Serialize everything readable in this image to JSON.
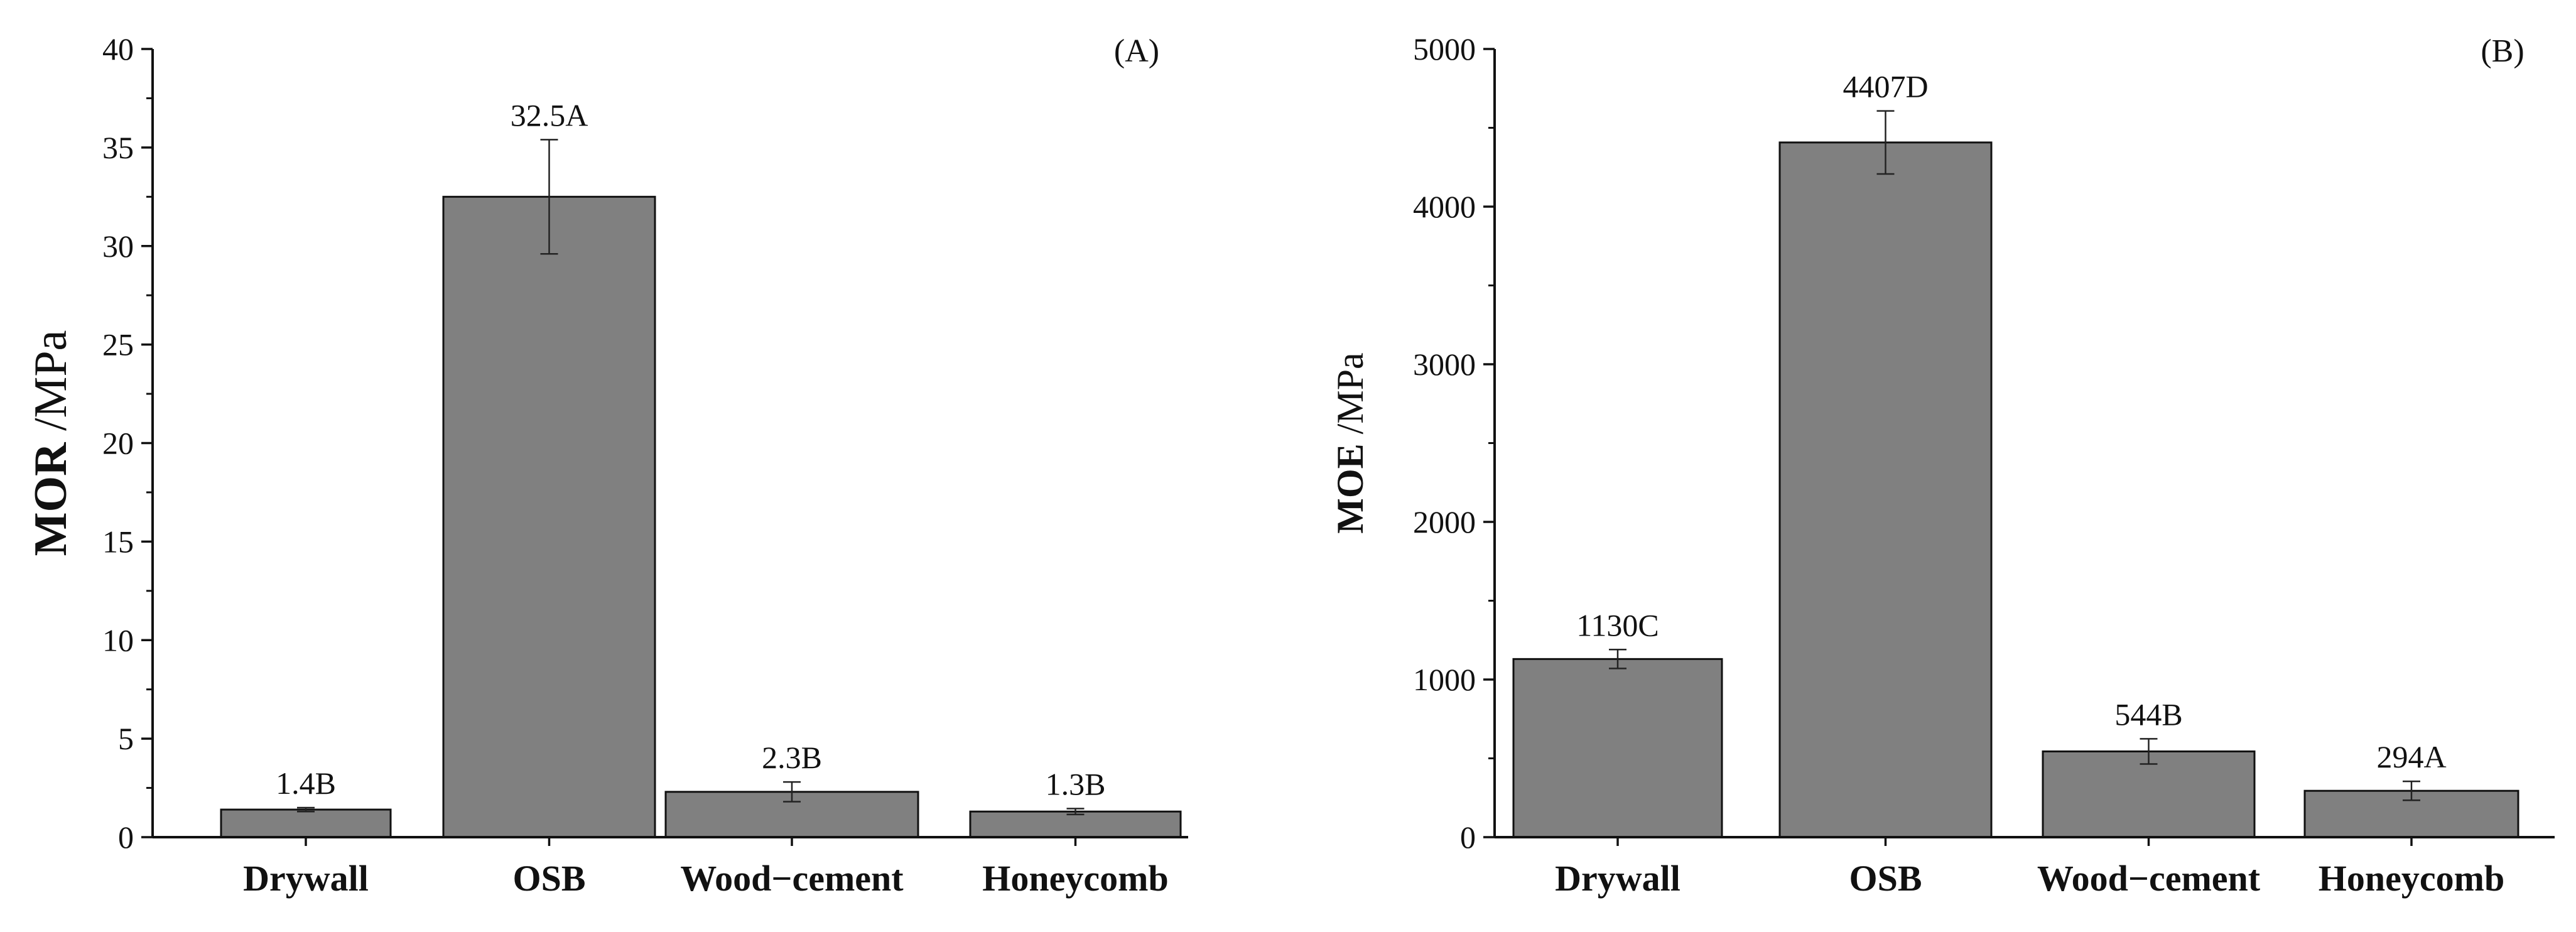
{
  "bar_color": "#808080",
  "chart_data": [
    {
      "type": "bar",
      "panel_label": "(A)",
      "ylabel_bold": "MOR",
      "ylabel_unit": " /MPa",
      "xlabel": "",
      "ylim": [
        0,
        40
      ],
      "yticks": [
        0,
        5,
        10,
        15,
        20,
        25,
        30,
        35,
        40
      ],
      "grid": false,
      "categories": [
        "Drywall",
        "OSB",
        "Wood−cement",
        "Honeycomb"
      ],
      "values": [
        1.4,
        32.5,
        2.3,
        1.3
      ],
      "errors": [
        0.1,
        2.9,
        0.5,
        0.15
      ],
      "data_labels": [
        "1.4B",
        "32.5A",
        "2.3B",
        "1.3B"
      ]
    },
    {
      "type": "bar",
      "panel_label": "(B)",
      "ylabel_bold": "MOE",
      "ylabel_unit": " /MPa",
      "xlabel": "",
      "ylim": [
        0,
        5000
      ],
      "yticks": [
        0,
        1000,
        2000,
        3000,
        4000,
        5000
      ],
      "grid": false,
      "categories": [
        "Drywall",
        "OSB",
        "Wood−cement",
        "Honeycomb"
      ],
      "values": [
        1130,
        4407,
        544,
        294
      ],
      "errors": [
        60,
        200,
        80,
        60
      ],
      "data_labels": [
        "1130C",
        "4407D",
        "544B",
        "294A"
      ]
    }
  ]
}
